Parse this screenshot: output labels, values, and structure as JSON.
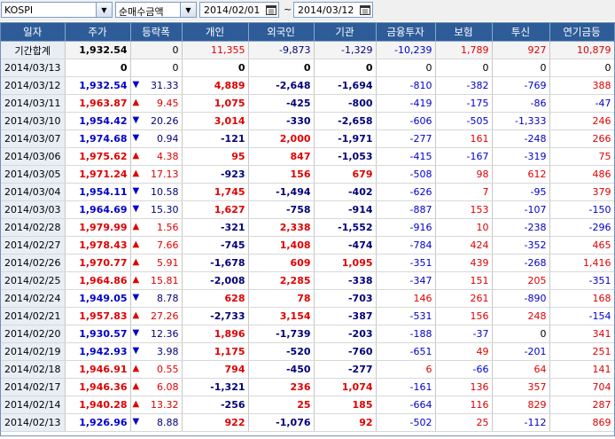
{
  "toolbar": {
    "index": "KOSPI",
    "metric": "순매수금액",
    "start_date": "2014/02/01",
    "separator": "~",
    "end_date": "2014/03/12"
  },
  "columns": [
    "일자",
    "주가",
    "등락폭",
    "개인",
    "외국인",
    "기관",
    "금융투자",
    "보험",
    "투신",
    "연기금등"
  ],
  "total_row": {
    "date": "기간합계",
    "price": "1,932.54",
    "change": "0",
    "indiv": "11,355",
    "foreign": "-9,873",
    "inst": "-1,329",
    "fin": "-10,239",
    "ins": "1,789",
    "trust": "927",
    "pension": "10,879"
  },
  "rows": [
    {
      "date": "2014/03/13",
      "price": "0",
      "dir": "none",
      "change": "0",
      "indiv": "0",
      "foreign": "0",
      "inst": "0",
      "fin": "0",
      "ins": "0",
      "trust": "0",
      "pension": "0"
    },
    {
      "date": "2014/03/12",
      "price": "1,932.54",
      "dir": "down",
      "change": "31.33",
      "indiv": "4,889",
      "foreign": "-2,648",
      "inst": "-1,694",
      "fin": "-810",
      "ins": "-382",
      "trust": "-769",
      "pension": "388"
    },
    {
      "date": "2014/03/11",
      "price": "1,963.87",
      "dir": "up",
      "change": "9.45",
      "indiv": "1,075",
      "foreign": "-425",
      "inst": "-800",
      "fin": "-419",
      "ins": "-175",
      "trust": "-86",
      "pension": "-47"
    },
    {
      "date": "2014/03/10",
      "price": "1,954.42",
      "dir": "down",
      "change": "20.26",
      "indiv": "3,014",
      "foreign": "-330",
      "inst": "-2,658",
      "fin": "-606",
      "ins": "-505",
      "trust": "-1,333",
      "pension": "246"
    },
    {
      "date": "2014/03/07",
      "price": "1,974.68",
      "dir": "down",
      "change": "0.94",
      "indiv": "-121",
      "foreign": "2,000",
      "inst": "-1,971",
      "fin": "-277",
      "ins": "161",
      "trust": "-248",
      "pension": "266"
    },
    {
      "date": "2014/03/06",
      "price": "1,975.62",
      "dir": "up",
      "change": "4.38",
      "indiv": "95",
      "foreign": "847",
      "inst": "-1,053",
      "fin": "-415",
      "ins": "-167",
      "trust": "-319",
      "pension": "75"
    },
    {
      "date": "2014/03/05",
      "price": "1,971.24",
      "dir": "up",
      "change": "17.13",
      "indiv": "-923",
      "foreign": "156",
      "inst": "679",
      "fin": "-508",
      "ins": "98",
      "trust": "612",
      "pension": "486"
    },
    {
      "date": "2014/03/04",
      "price": "1,954.11",
      "dir": "down",
      "change": "10.58",
      "indiv": "1,745",
      "foreign": "-1,494",
      "inst": "-402",
      "fin": "-626",
      "ins": "7",
      "trust": "-95",
      "pension": "379"
    },
    {
      "date": "2014/03/03",
      "price": "1,964.69",
      "dir": "down",
      "change": "15.30",
      "indiv": "1,627",
      "foreign": "-758",
      "inst": "-914",
      "fin": "-887",
      "ins": "153",
      "trust": "-107",
      "pension": "-150"
    },
    {
      "date": "2014/02/28",
      "price": "1,979.99",
      "dir": "up",
      "change": "1.56",
      "indiv": "-321",
      "foreign": "2,338",
      "inst": "-1,552",
      "fin": "-916",
      "ins": "10",
      "trust": "-238",
      "pension": "-296"
    },
    {
      "date": "2014/02/27",
      "price": "1,978.43",
      "dir": "up",
      "change": "7.66",
      "indiv": "-745",
      "foreign": "1,408",
      "inst": "-474",
      "fin": "-784",
      "ins": "424",
      "trust": "-352",
      "pension": "465"
    },
    {
      "date": "2014/02/26",
      "price": "1,970.77",
      "dir": "up",
      "change": "5.91",
      "indiv": "-1,678",
      "foreign": "609",
      "inst": "1,095",
      "fin": "-351",
      "ins": "439",
      "trust": "-268",
      "pension": "1,416"
    },
    {
      "date": "2014/02/25",
      "price": "1,964.86",
      "dir": "up",
      "change": "15.81",
      "indiv": "-2,008",
      "foreign": "2,285",
      "inst": "-338",
      "fin": "-347",
      "ins": "151",
      "trust": "205",
      "pension": "-351"
    },
    {
      "date": "2014/02/24",
      "price": "1,949.05",
      "dir": "down",
      "change": "8.78",
      "indiv": "628",
      "foreign": "78",
      "inst": "-703",
      "fin": "146",
      "ins": "261",
      "trust": "-890",
      "pension": "168"
    },
    {
      "date": "2014/02/21",
      "price": "1,957.83",
      "dir": "up",
      "change": "27.26",
      "indiv": "-2,733",
      "foreign": "3,154",
      "inst": "-387",
      "fin": "-531",
      "ins": "156",
      "trust": "248",
      "pension": "-154"
    },
    {
      "date": "2014/02/20",
      "price": "1,930.57",
      "dir": "down",
      "change": "12.36",
      "indiv": "1,896",
      "foreign": "-1,739",
      "inst": "-203",
      "fin": "-188",
      "ins": "-37",
      "trust": "0",
      "pension": "341"
    },
    {
      "date": "2014/02/19",
      "price": "1,942.93",
      "dir": "down",
      "change": "3.98",
      "indiv": "1,175",
      "foreign": "-520",
      "inst": "-760",
      "fin": "-651",
      "ins": "49",
      "trust": "-201",
      "pension": "251"
    },
    {
      "date": "2014/02/18",
      "price": "1,946.91",
      "dir": "up",
      "change": "0.55",
      "indiv": "794",
      "foreign": "-450",
      "inst": "-277",
      "fin": "6",
      "ins": "-66",
      "trust": "64",
      "pension": "141"
    },
    {
      "date": "2014/02/17",
      "price": "1,946.36",
      "dir": "up",
      "change": "6.08",
      "indiv": "-1,321",
      "foreign": "236",
      "inst": "1,074",
      "fin": "-161",
      "ins": "136",
      "trust": "357",
      "pension": "704"
    },
    {
      "date": "2014/02/14",
      "price": "1,940.28",
      "dir": "up",
      "change": "13.32",
      "indiv": "-256",
      "foreign": "25",
      "inst": "185",
      "fin": "-664",
      "ins": "116",
      "trust": "829",
      "pension": "287"
    },
    {
      "date": "2014/02/13",
      "price": "1,926.96",
      "dir": "down",
      "change": "8.88",
      "indiv": "922",
      "foreign": "-1,076",
      "inst": "92",
      "fin": "-502",
      "ins": "25",
      "trust": "-112",
      "pension": "869"
    }
  ],
  "colors": {
    "header_bg": "#2e5c98",
    "up": "#e00000",
    "down": "#0000cc",
    "date_bg": "#e9eef5"
  },
  "icons": {
    "dropdown": "chevron-down-icon",
    "calendar": "calendar-icon",
    "up": "triangle-up-icon",
    "down": "triangle-down-icon"
  }
}
